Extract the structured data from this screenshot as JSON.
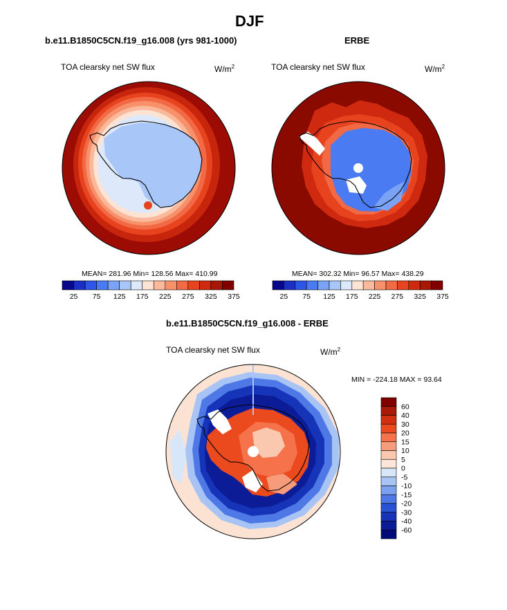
{
  "figure": {
    "title": "DJF"
  },
  "panels": [
    {
      "title": "b.e11.B1850C5CN.f19_g16.008 (yrs 981-1000)",
      "variable": "TOA clearsky net SW flux",
      "units": "W/m",
      "units_sup": "2",
      "stats": "MEAN= 281.96  Min= 128.56  Max= 410.99"
    },
    {
      "title": "ERBE",
      "variable": "TOA clearsky net SW flux",
      "units": "W/m",
      "units_sup": "2",
      "stats": "MEAN= 302.32  Min=  96.57  Max= 438.29"
    },
    {
      "title": "b.e11.B1850C5CN.f19_g16.008 - ERBE",
      "variable": "TOA clearsky net SW flux",
      "units": "W/m",
      "units_sup": "2",
      "stats": "MIN = -224.18 MAX =  93.64"
    }
  ],
  "colorbar_abs": {
    "colors": [
      "#08088a",
      "#1a2fc4",
      "#2d55e8",
      "#4a7bf2",
      "#7aa3f5",
      "#a9c6f8",
      "#dde9fb",
      "#fde3d4",
      "#f9b99a",
      "#f6916b",
      "#f26a45",
      "#e8431f",
      "#cf2a10",
      "#a81606",
      "#800000"
    ],
    "tick_labels": [
      "25",
      "75",
      "125",
      "175",
      "225",
      "275",
      "325",
      "375"
    ]
  },
  "colorbar_diff": {
    "colors": [
      "#800000",
      "#aa1a08",
      "#d0300f",
      "#ea4a1e",
      "#f6724a",
      "#f79c7a",
      "#f9c8ae",
      "#fde6d9",
      "#d8e6fa",
      "#a8c4f5",
      "#7aa0ef",
      "#4d78e6",
      "#2a52d7",
      "#1634b8",
      "#0b1c96",
      "#020a7a"
    ],
    "tick_labels": [
      "60",
      "40",
      "30",
      "20",
      "15",
      "10",
      "5",
      "0",
      "-5",
      "-10",
      "-15",
      "-20",
      "-30",
      "-40",
      "-60"
    ]
  }
}
